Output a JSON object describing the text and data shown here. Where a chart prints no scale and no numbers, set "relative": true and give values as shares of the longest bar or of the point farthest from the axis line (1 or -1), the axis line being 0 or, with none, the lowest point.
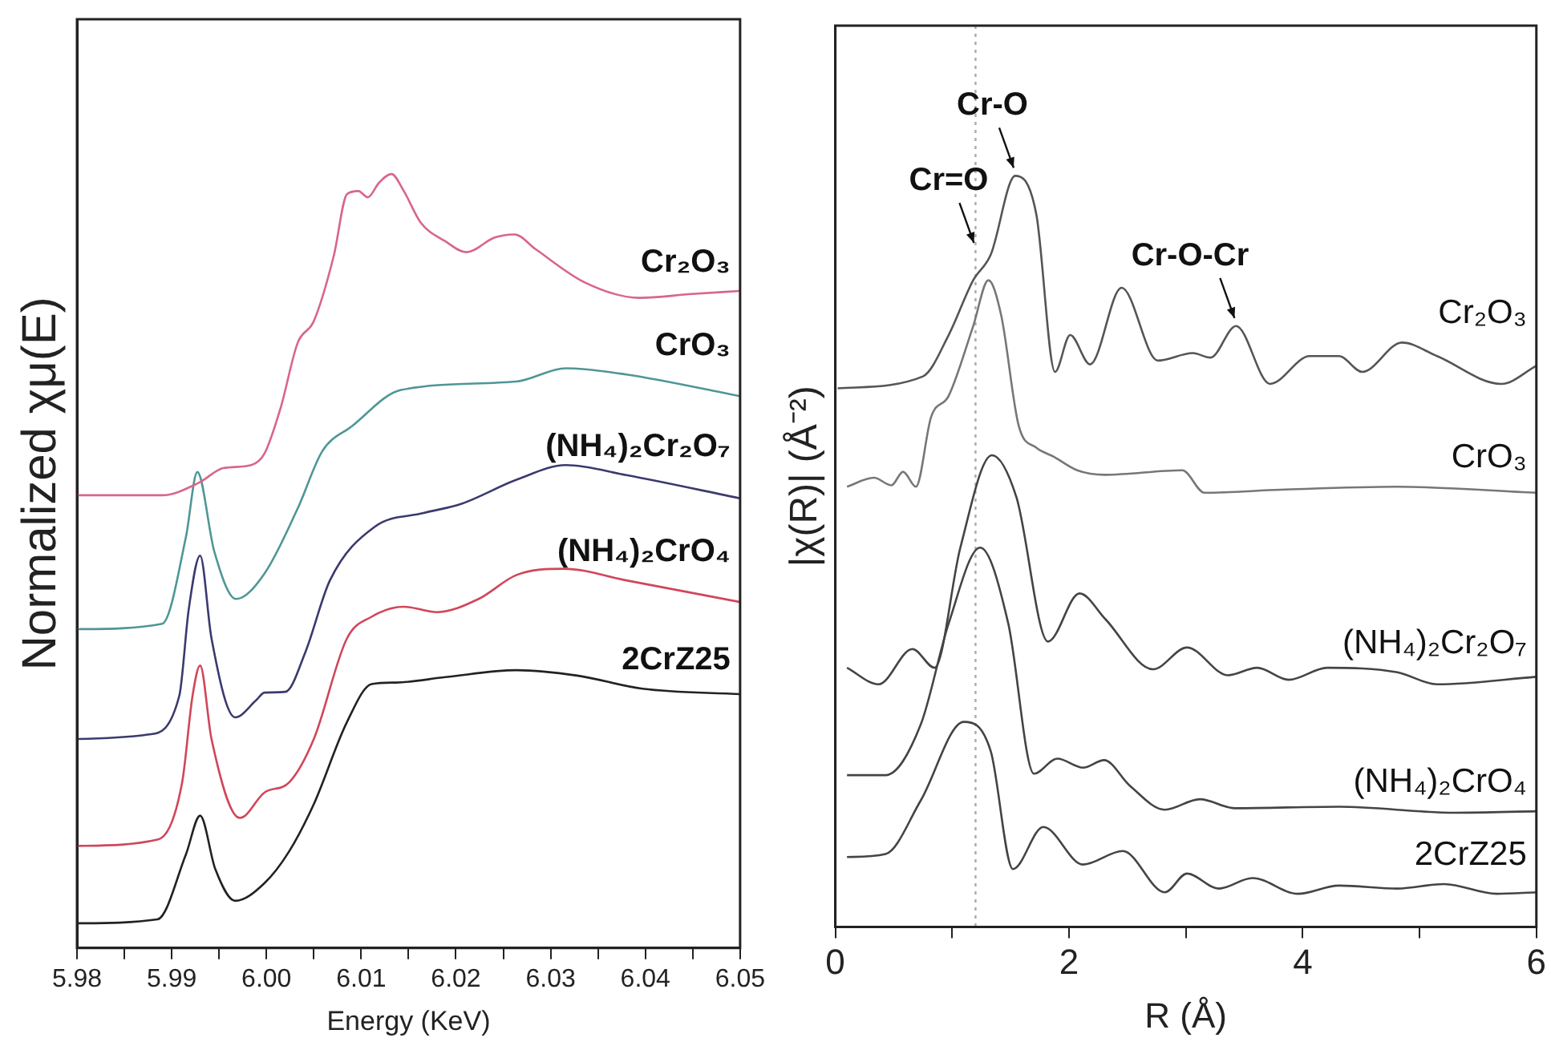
{
  "chart_data": [
    {
      "type": "line",
      "relative": true,
      "ylabel": "Normalized χμ(E)",
      "xlabel": "Energy (KeV)",
      "xlim": [
        5.98,
        6.05
      ],
      "xticks": [
        5.98,
        {
          "value": 5.985,
          "label": null
        },
        5.99,
        {
          "value": 5.995,
          "label": null
        },
        {
          "value": 6.0,
          "label": "6.00"
        },
        {
          "value": 6.005,
          "label": null
        },
        6.01,
        {
          "value": 6.015,
          "label": null
        },
        6.02,
        {
          "value": 6.025,
          "label": null
        },
        6.03,
        {
          "value": 6.035,
          "label": null
        },
        6.04,
        {
          "value": 6.045,
          "label": null
        },
        6.05
      ],
      "legend": false,
      "grid": false,
      "series": [
        {
          "name": "Cr₂O₃",
          "color": "#d8668a",
          "x": [
            5.98,
            5.989,
            5.99285,
            5.99545,
            5.9984,
            5.9998,
            6.0015,
            6.0033,
            6.005,
            6.0071,
            6.0085,
            6.0097,
            6.0107,
            6.0119,
            6.0132,
            6.0145,
            6.0163,
            6.0189,
            6.0211,
            6.0241,
            6.0262,
            6.0284,
            6.0336,
            6.0394,
            6.0449,
            6.05
          ],
          "values": [
            0.585,
            0.585,
            0.601,
            0.62,
            0.624,
            0.639,
            0.698,
            0.782,
            0.81,
            0.894,
            0.974,
            0.978,
            0.97,
            0.989,
            1,
            0.978,
            0.937,
            0.913,
            0.899,
            0.918,
            0.922,
            0.903,
            0.86,
            0.84,
            0.845,
            0.849
          ]
        },
        {
          "name": "CrO₃",
          "color": "#4f9696",
          "x": [
            5.98,
            5.989,
            5.9915,
            5.9927,
            5.9945,
            5.9968,
            5.9998,
            6.0033,
            6.0059,
            6.009,
            6.0142,
            6.0264,
            6.0316,
            6.038,
            6.05
          ],
          "values": [
            0.412,
            0.419,
            0.531,
            0.615,
            0.512,
            0.451,
            0.484,
            0.568,
            0.642,
            0.674,
            0.721,
            0.732,
            0.749,
            0.741,
            0.713
          ]
        },
        {
          "name": "(NH₄)₂Cr₂O₇",
          "color": "#3a3a6e",
          "x": [
            5.98,
            5.9876,
            5.9908,
            5.9918,
            5.993,
            5.9942,
            5.9967,
            5.9989,
            5.9998,
            6.002,
            6.0041,
            6.0067,
            6.0114,
            6.0166,
            6.0206,
            6.0264,
            6.0316,
            6.038,
            6.05
          ],
          "values": [
            0.27,
            0.276,
            0.326,
            0.438,
            0.507,
            0.4,
            0.298,
            0.32,
            0.33,
            0.331,
            0.382,
            0.475,
            0.544,
            0.562,
            0.574,
            0.605,
            0.624,
            0.611,
            0.581
          ]
        },
        {
          "name": "(NH₄)₂CrO₄",
          "color": "#d0465a",
          "x": [
            5.98,
            5.9885,
            5.9911,
            5.9922,
            5.993,
            5.9942,
            5.9972,
            5.9998,
            6.0024,
            6.005,
            6.0085,
            6.0111,
            6.0145,
            6.018,
            6.0224,
            6.0264,
            6.0314,
            6.038,
            6.05
          ],
          "values": [
            0.132,
            0.14,
            0.214,
            0.326,
            0.365,
            0.27,
            0.168,
            0.201,
            0.214,
            0.27,
            0.4,
            0.428,
            0.441,
            0.434,
            0.451,
            0.482,
            0.49,
            0.475,
            0.447
          ]
        },
        {
          "name": "2CrZ25",
          "color": "#222222",
          "x": [
            5.98,
            5.9885,
            5.9915,
            5.993,
            5.9946,
            5.9967,
            5.9998,
            6.0024,
            6.005,
            6.0085,
            6.0111,
            6.0137,
            6.0189,
            6.0264,
            6.0328,
            6.0397,
            6.05
          ],
          "values": [
            0.032,
            0.037,
            0.121,
            0.171,
            0.102,
            0.061,
            0.084,
            0.125,
            0.186,
            0.292,
            0.341,
            0.343,
            0.35,
            0.359,
            0.352,
            0.335,
            0.328
          ]
        }
      ]
    },
    {
      "type": "line",
      "relative": true,
      "ylabel": "|χ(R)| (Å⁻²)",
      "xlabel": "R (Å)",
      "xlim": [
        0,
        6
      ],
      "xticks": [
        0,
        {
          "value": 1,
          "label": null
        },
        2,
        {
          "value": 3,
          "label": null
        },
        4,
        {
          "value": 5,
          "label": null
        },
        6
      ],
      "legend": false,
      "grid": false,
      "ref_lines": [
        {
          "axis": "x",
          "value": 1.2,
          "color": "#aaaaaa",
          "line_style": "dotted"
        }
      ],
      "annotations": [
        {
          "text": "Cr-O",
          "x": 1.54,
          "y": 1
        },
        {
          "text": "Cr=O",
          "x": 1.2,
          "y": 0.9
        },
        {
          "text": "Cr-O-Cr",
          "x": 3.43,
          "y": 0.8
        }
      ],
      "series": [
        {
          "name": "Cr₂O₃",
          "color": "#555555",
          "x": [
            0.02,
            0.75,
            0.97,
            1.18,
            1.33,
            1.54,
            1.72,
            1.88,
            2.01,
            2.18,
            2.45,
            2.76,
            3.06,
            3.21,
            3.43,
            3.72,
            4.06,
            4.31,
            4.51,
            4.85,
            5.15,
            5.7,
            6
          ],
          "values": [
            0.717,
            0.733,
            0.788,
            0.861,
            0.895,
            1,
            0.949,
            0.739,
            0.788,
            0.749,
            0.851,
            0.754,
            0.764,
            0.758,
            0.8,
            0.723,
            0.76,
            0.76,
            0.739,
            0.778,
            0.76,
            0.723,
            0.747
          ]
        },
        {
          "name": "CrO₃",
          "color": "#777777",
          "x": [
            0.1,
            0.33,
            0.48,
            0.58,
            0.69,
            0.82,
            0.97,
            1.18,
            1.31,
            1.42,
            1.57,
            1.72,
            1.87,
            2.07,
            2.31,
            2.97,
            3.16,
            3.81,
            4.81,
            6
          ],
          "values": [
            0.586,
            0.598,
            0.588,
            0.606,
            0.586,
            0.679,
            0.707,
            0.8,
            0.861,
            0.814,
            0.667,
            0.638,
            0.626,
            0.608,
            0.602,
            0.608,
            0.578,
            0.582,
            0.586,
            0.578
          ]
        },
        {
          "name": "(NH₄)₂Cr₂O₇",
          "color": "#444444",
          "x": [
            0.1,
            0.37,
            0.66,
            0.85,
            1.07,
            1.34,
            1.55,
            1.82,
            2.09,
            2.31,
            2.72,
            3.01,
            3.36,
            3.61,
            3.88,
            4.21,
            4.81,
            5.15,
            6
          ],
          "values": [
            0.345,
            0.323,
            0.37,
            0.345,
            0.505,
            0.628,
            0.572,
            0.38,
            0.444,
            0.41,
            0.343,
            0.372,
            0.335,
            0.345,
            0.329,
            0.345,
            0.339,
            0.323,
            0.333
          ]
        },
        {
          "name": "(NH₄)₂CrO₄",
          "color": "#444444",
          "x": [
            0.1,
            0.43,
            0.73,
            0.97,
            1.24,
            1.48,
            1.7,
            1.9,
            2.12,
            2.3,
            2.52,
            2.82,
            3.12,
            3.42,
            4.31,
            5.3,
            6
          ],
          "values": [
            0.202,
            0.202,
            0.269,
            0.404,
            0.505,
            0.404,
            0.204,
            0.224,
            0.212,
            0.222,
            0.188,
            0.156,
            0.17,
            0.158,
            0.16,
            0.152,
            0.154
          ]
        },
        {
          "name": "2CrZ25",
          "color": "#444444",
          "x": [
            0.1,
            0.43,
            0.73,
            1.1,
            1.33,
            1.52,
            1.78,
            2.12,
            2.46,
            2.82,
            3.01,
            3.28,
            3.57,
            3.96,
            4.31,
            4.81,
            5.21,
            5.66,
            6
          ],
          "values": [
            0.093,
            0.097,
            0.168,
            0.273,
            0.234,
            0.077,
            0.133,
            0.083,
            0.101,
            0.046,
            0.071,
            0.051,
            0.065,
            0.044,
            0.055,
            0.051,
            0.057,
            0.044,
            0.046
          ]
        }
      ]
    }
  ]
}
